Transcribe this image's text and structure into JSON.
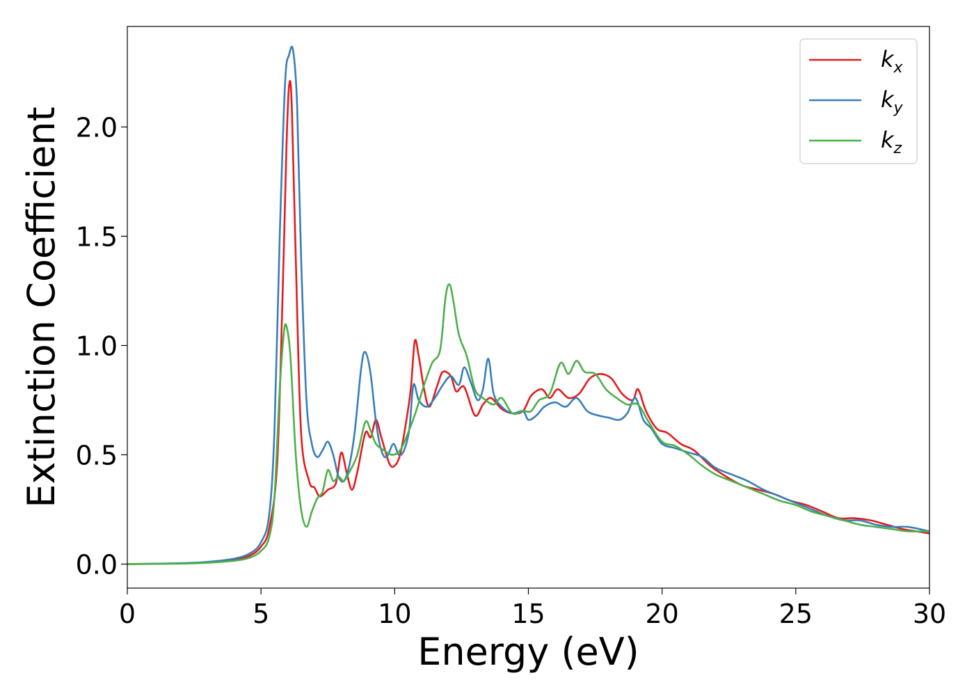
{
  "chart_data": {
    "type": "line",
    "xlabel": "Energy (eV)",
    "ylabel": "Extinction Coefficient",
    "xlim": [
      0,
      30
    ],
    "ylim": [
      -0.11,
      2.46
    ],
    "xticks": [
      0,
      5,
      10,
      15,
      20,
      25,
      30
    ],
    "xtick_labels": [
      "0",
      "5",
      "10",
      "15",
      "20",
      "25",
      "30"
    ],
    "yticks": [
      0.0,
      0.5,
      1.0,
      1.5,
      2.0
    ],
    "ytick_labels": [
      "0.0",
      "0.5",
      "1.0",
      "1.5",
      "2.0"
    ],
    "grid": false,
    "legend_position": "top-right",
    "series": [
      {
        "name": "k",
        "subscript": "x",
        "color": "#e41a1c",
        "points": [
          [
            0,
            0.0
          ],
          [
            2,
            0.003
          ],
          [
            3,
            0.008
          ],
          [
            4,
            0.02
          ],
          [
            4.6,
            0.04
          ],
          [
            5.0,
            0.08
          ],
          [
            5.3,
            0.16
          ],
          [
            5.6,
            0.45
          ],
          [
            5.8,
            1.2
          ],
          [
            5.95,
            1.9
          ],
          [
            6.05,
            2.19
          ],
          [
            6.15,
            2.1
          ],
          [
            6.3,
            1.4
          ],
          [
            6.5,
            0.6
          ],
          [
            6.8,
            0.38
          ],
          [
            7.0,
            0.35
          ],
          [
            7.2,
            0.31
          ],
          [
            7.5,
            0.34
          ],
          [
            7.8,
            0.37
          ],
          [
            8.0,
            0.51
          ],
          [
            8.2,
            0.42
          ],
          [
            8.4,
            0.34
          ],
          [
            8.6,
            0.42
          ],
          [
            8.9,
            0.6
          ],
          [
            9.1,
            0.58
          ],
          [
            9.3,
            0.66
          ],
          [
            9.5,
            0.58
          ],
          [
            9.8,
            0.46
          ],
          [
            10.0,
            0.45
          ],
          [
            10.2,
            0.5
          ],
          [
            10.4,
            0.63
          ],
          [
            10.6,
            0.8
          ],
          [
            10.75,
            1.02
          ],
          [
            10.9,
            0.95
          ],
          [
            11.1,
            0.8
          ],
          [
            11.3,
            0.72
          ],
          [
            11.6,
            0.82
          ],
          [
            11.8,
            0.88
          ],
          [
            12.1,
            0.86
          ],
          [
            12.3,
            0.79
          ],
          [
            12.6,
            0.81
          ],
          [
            13.0,
            0.68
          ],
          [
            13.3,
            0.73
          ],
          [
            13.6,
            0.76
          ],
          [
            14.0,
            0.71
          ],
          [
            14.4,
            0.69
          ],
          [
            14.8,
            0.7
          ],
          [
            15.1,
            0.77
          ],
          [
            15.5,
            0.8
          ],
          [
            15.8,
            0.76
          ],
          [
            16.1,
            0.8
          ],
          [
            16.5,
            0.76
          ],
          [
            16.9,
            0.78
          ],
          [
            17.3,
            0.85
          ],
          [
            17.7,
            0.87
          ],
          [
            18.1,
            0.85
          ],
          [
            18.5,
            0.78
          ],
          [
            18.9,
            0.75
          ],
          [
            19.1,
            0.8
          ],
          [
            19.4,
            0.7
          ],
          [
            19.8,
            0.62
          ],
          [
            20.2,
            0.6
          ],
          [
            20.7,
            0.55
          ],
          [
            21.2,
            0.52
          ],
          [
            21.8,
            0.45
          ],
          [
            22.4,
            0.4
          ],
          [
            23.0,
            0.36
          ],
          [
            23.6,
            0.34
          ],
          [
            24.2,
            0.32
          ],
          [
            24.8,
            0.29
          ],
          [
            25.4,
            0.27
          ],
          [
            26.0,
            0.24
          ],
          [
            26.6,
            0.21
          ],
          [
            27.2,
            0.21
          ],
          [
            27.8,
            0.2
          ],
          [
            28.4,
            0.18
          ],
          [
            29.0,
            0.16
          ],
          [
            29.5,
            0.15
          ],
          [
            30.0,
            0.14
          ]
        ]
      },
      {
        "name": "k",
        "subscript": "y",
        "color": "#377eb8",
        "points": [
          [
            0,
            0.0
          ],
          [
            2,
            0.004
          ],
          [
            3,
            0.01
          ],
          [
            4,
            0.025
          ],
          [
            4.6,
            0.05
          ],
          [
            5.0,
            0.1
          ],
          [
            5.3,
            0.22
          ],
          [
            5.5,
            0.6
          ],
          [
            5.7,
            1.5
          ],
          [
            5.9,
            2.2
          ],
          [
            6.05,
            2.33
          ],
          [
            6.2,
            2.35
          ],
          [
            6.35,
            2.1
          ],
          [
            6.5,
            1.4
          ],
          [
            6.7,
            0.75
          ],
          [
            6.9,
            0.55
          ],
          [
            7.1,
            0.49
          ],
          [
            7.3,
            0.52
          ],
          [
            7.5,
            0.56
          ],
          [
            7.7,
            0.5
          ],
          [
            7.9,
            0.4
          ],
          [
            8.1,
            0.38
          ],
          [
            8.3,
            0.45
          ],
          [
            8.5,
            0.6
          ],
          [
            8.75,
            0.9
          ],
          [
            8.9,
            0.97
          ],
          [
            9.1,
            0.87
          ],
          [
            9.3,
            0.65
          ],
          [
            9.5,
            0.52
          ],
          [
            9.7,
            0.49
          ],
          [
            9.95,
            0.55
          ],
          [
            10.15,
            0.5
          ],
          [
            10.35,
            0.52
          ],
          [
            10.55,
            0.62
          ],
          [
            10.7,
            0.82
          ],
          [
            10.9,
            0.75
          ],
          [
            11.2,
            0.72
          ],
          [
            11.5,
            0.76
          ],
          [
            11.8,
            0.82
          ],
          [
            12.1,
            0.86
          ],
          [
            12.4,
            0.82
          ],
          [
            12.6,
            0.9
          ],
          [
            12.85,
            0.83
          ],
          [
            13.1,
            0.75
          ],
          [
            13.3,
            0.8
          ],
          [
            13.5,
            0.94
          ],
          [
            13.7,
            0.78
          ],
          [
            14.0,
            0.72
          ],
          [
            14.4,
            0.69
          ],
          [
            14.8,
            0.7
          ],
          [
            15.0,
            0.66
          ],
          [
            15.3,
            0.68
          ],
          [
            15.6,
            0.72
          ],
          [
            16.0,
            0.74
          ],
          [
            16.4,
            0.72
          ],
          [
            16.8,
            0.76
          ],
          [
            17.2,
            0.7
          ],
          [
            17.6,
            0.68
          ],
          [
            18.0,
            0.67
          ],
          [
            18.4,
            0.66
          ],
          [
            18.7,
            0.69
          ],
          [
            19.0,
            0.76
          ],
          [
            19.3,
            0.66
          ],
          [
            19.6,
            0.62
          ],
          [
            20.0,
            0.55
          ],
          [
            20.5,
            0.53
          ],
          [
            21.0,
            0.51
          ],
          [
            21.5,
            0.49
          ],
          [
            22.0,
            0.44
          ],
          [
            22.6,
            0.41
          ],
          [
            23.2,
            0.38
          ],
          [
            23.8,
            0.34
          ],
          [
            24.4,
            0.31
          ],
          [
            25.0,
            0.28
          ],
          [
            25.6,
            0.25
          ],
          [
            26.2,
            0.22
          ],
          [
            26.8,
            0.2
          ],
          [
            27.4,
            0.2
          ],
          [
            28.0,
            0.18
          ],
          [
            28.6,
            0.17
          ],
          [
            29.2,
            0.17
          ],
          [
            30.0,
            0.15
          ]
        ]
      },
      {
        "name": "k",
        "subscript": "z",
        "color": "#4daf4a",
        "points": [
          [
            0,
            0.0
          ],
          [
            2,
            0.002
          ],
          [
            3,
            0.006
          ],
          [
            4,
            0.015
          ],
          [
            4.6,
            0.03
          ],
          [
            5.0,
            0.06
          ],
          [
            5.3,
            0.12
          ],
          [
            5.5,
            0.3
          ],
          [
            5.7,
            0.8
          ],
          [
            5.85,
            1.05
          ],
          [
            5.95,
            1.09
          ],
          [
            6.1,
            0.95
          ],
          [
            6.3,
            0.5
          ],
          [
            6.5,
            0.25
          ],
          [
            6.7,
            0.17
          ],
          [
            6.9,
            0.24
          ],
          [
            7.1,
            0.3
          ],
          [
            7.3,
            0.33
          ],
          [
            7.5,
            0.43
          ],
          [
            7.7,
            0.38
          ],
          [
            7.9,
            0.4
          ],
          [
            8.1,
            0.38
          ],
          [
            8.3,
            0.42
          ],
          [
            8.6,
            0.5
          ],
          [
            8.9,
            0.65
          ],
          [
            9.1,
            0.61
          ],
          [
            9.3,
            0.55
          ],
          [
            9.6,
            0.52
          ],
          [
            9.9,
            0.5
          ],
          [
            10.2,
            0.52
          ],
          [
            10.5,
            0.6
          ],
          [
            10.8,
            0.7
          ],
          [
            11.1,
            0.82
          ],
          [
            11.4,
            0.92
          ],
          [
            11.7,
            0.98
          ],
          [
            11.9,
            1.22
          ],
          [
            12.05,
            1.28
          ],
          [
            12.2,
            1.2
          ],
          [
            12.4,
            1.05
          ],
          [
            12.7,
            0.95
          ],
          [
            13.0,
            0.8
          ],
          [
            13.3,
            0.76
          ],
          [
            13.7,
            0.73
          ],
          [
            14.0,
            0.76
          ],
          [
            14.4,
            0.69
          ],
          [
            14.8,
            0.7
          ],
          [
            15.1,
            0.7
          ],
          [
            15.4,
            0.75
          ],
          [
            15.8,
            0.78
          ],
          [
            16.2,
            0.92
          ],
          [
            16.5,
            0.87
          ],
          [
            16.8,
            0.93
          ],
          [
            17.1,
            0.88
          ],
          [
            17.5,
            0.87
          ],
          [
            17.9,
            0.8
          ],
          [
            18.3,
            0.76
          ],
          [
            18.7,
            0.73
          ],
          [
            19.1,
            0.73
          ],
          [
            19.5,
            0.65
          ],
          [
            20.0,
            0.56
          ],
          [
            20.5,
            0.54
          ],
          [
            21.0,
            0.5
          ],
          [
            21.5,
            0.45
          ],
          [
            22.0,
            0.41
          ],
          [
            22.6,
            0.38
          ],
          [
            23.2,
            0.35
          ],
          [
            23.8,
            0.32
          ],
          [
            24.4,
            0.29
          ],
          [
            25.0,
            0.27
          ],
          [
            25.6,
            0.24
          ],
          [
            26.2,
            0.22
          ],
          [
            26.8,
            0.2
          ],
          [
            27.4,
            0.18
          ],
          [
            28.0,
            0.17
          ],
          [
            28.6,
            0.16
          ],
          [
            29.2,
            0.15
          ],
          [
            30.0,
            0.15
          ]
        ]
      }
    ]
  }
}
